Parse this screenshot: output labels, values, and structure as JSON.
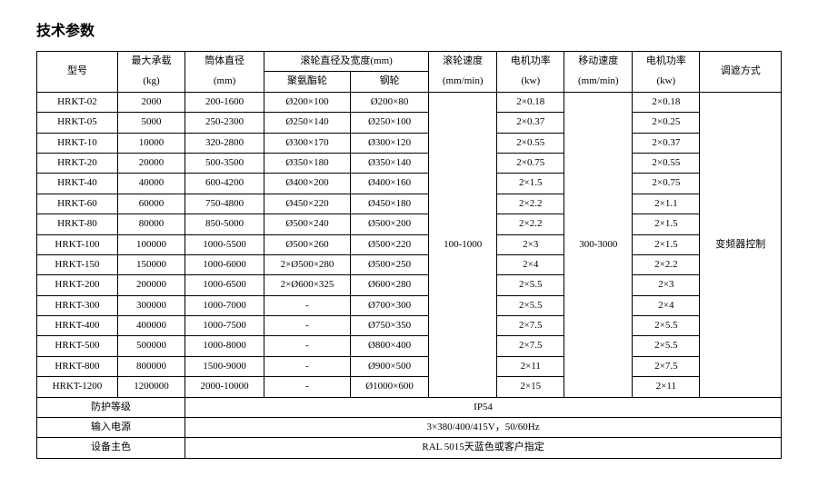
{
  "title": "技术参数",
  "headers": {
    "model": "型号",
    "maxLoad": {
      "line1": "最大承载",
      "line2": "(kg)"
    },
    "bodyDia": {
      "line1": "筒体直径",
      "line2": "(mm)"
    },
    "rollerDia": {
      "line1": "滚轮直径及宽度(mm)",
      "poly": "聚氨酯轮",
      "steel": "钢轮"
    },
    "rollerSpeed": {
      "line1": "滚轮速度",
      "line2": "(mm/min)"
    },
    "motorPower1": {
      "line1": "电机功率",
      "line2": "(kw)"
    },
    "moveSpeed": {
      "line1": "移动速度",
      "line2": "(mm/min)"
    },
    "motorPower2": {
      "line1": "电机功率",
      "line2": "(kw)"
    },
    "adjustMethod": "调遮方式"
  },
  "rows": [
    {
      "model": "HRKT-02",
      "load": "2000",
      "dia": "200-1600",
      "poly": "Ø200×100",
      "steel": "Ø200×80",
      "p1": "2×0.18",
      "p2": "2×0.18"
    },
    {
      "model": "HRKT-05",
      "load": "5000",
      "dia": "250-2300",
      "poly": "Ø250×140",
      "steel": "Ø250×100",
      "p1": "2×0.37",
      "p2": "2×0.25"
    },
    {
      "model": "HRKT-10",
      "load": "10000",
      "dia": "320-2800",
      "poly": "Ø300×170",
      "steel": "Ø300×120",
      "p1": "2×0.55",
      "p2": "2×0.37"
    },
    {
      "model": "HRKT-20",
      "load": "20000",
      "dia": "500-3500",
      "poly": "Ø350×180",
      "steel": "Ø350×140",
      "p1": "2×0.75",
      "p2": "2×0.55"
    },
    {
      "model": "HRKT-40",
      "load": "40000",
      "dia": "600-4200",
      "poly": "Ø400×200",
      "steel": "Ø400×160",
      "p1": "2×1.5",
      "p2": "2×0.75"
    },
    {
      "model": "HRKT-60",
      "load": "60000",
      "dia": "750-4800",
      "poly": "Ø450×220",
      "steel": "Ø450×180",
      "p1": "2×2.2",
      "p2": "2×1.1"
    },
    {
      "model": "HRKT-80",
      "load": "80000",
      "dia": "850-5000",
      "poly": "Ø500×240",
      "steel": "Ø500×200",
      "p1": "2×2.2",
      "p2": "2×1.5"
    },
    {
      "model": "HRKT-100",
      "load": "100000",
      "dia": "1000-5500",
      "poly": "Ø500×260",
      "steel": "Ø500×220",
      "p1": "2×3",
      "p2": "2×1.5"
    },
    {
      "model": "HRKT-150",
      "load": "150000",
      "dia": "1000-6000",
      "poly": "2×Ø500×280",
      "steel": "Ø500×250",
      "p1": "2×4",
      "p2": "2×2.2"
    },
    {
      "model": "HRKT-200",
      "load": "200000",
      "dia": "1000-6500",
      "poly": "2×Ø600×325",
      "steel": "Ø600×280",
      "p1": "2×5.5",
      "p2": "2×3"
    },
    {
      "model": "HRKT-300",
      "load": "300000",
      "dia": "1000-7000",
      "poly": "-",
      "steel": "Ø700×300",
      "p1": "2×5.5",
      "p2": "2×4"
    },
    {
      "model": "HRKT-400",
      "load": "400000",
      "dia": "1000-7500",
      "poly": "-",
      "steel": "Ø750×350",
      "p1": "2×7.5",
      "p2": "2×5.5"
    },
    {
      "model": "HRKT-500",
      "load": "500000",
      "dia": "1000-8000",
      "poly": "-",
      "steel": "Ø800×400",
      "p1": "2×7.5",
      "p2": "2×5.5"
    },
    {
      "model": "HRKT-800",
      "load": "800000",
      "dia": "1500-9000",
      "poly": "-",
      "steel": "Ø900×500",
      "p1": "2×11",
      "p2": "2×7.5"
    },
    {
      "model": "HRKT-1200",
      "load": "1200000",
      "dia": "2000-10000",
      "poly": "-",
      "steel": "Ø1000×600",
      "p1": "2×15",
      "p2": "2×11"
    }
  ],
  "rollerSpeedValue": "100-1000",
  "moveSpeedValue": "300-3000",
  "adjustMethodValue": "变频器控制",
  "footer": {
    "protectionLabel": "防护等级",
    "protectionValue": "IP54",
    "powerLabel": "输入电源",
    "powerValue": "3×380/400/415V，50/60Hz",
    "colorLabel": "设备主色",
    "colorValue": "RAL 5015天蓝色或客户指定"
  },
  "styling": {
    "titleFontSize": 16,
    "cellFontSize": 11,
    "borderColor": "#000000",
    "backgroundColor": "#ffffff",
    "textColor": "#000000"
  }
}
